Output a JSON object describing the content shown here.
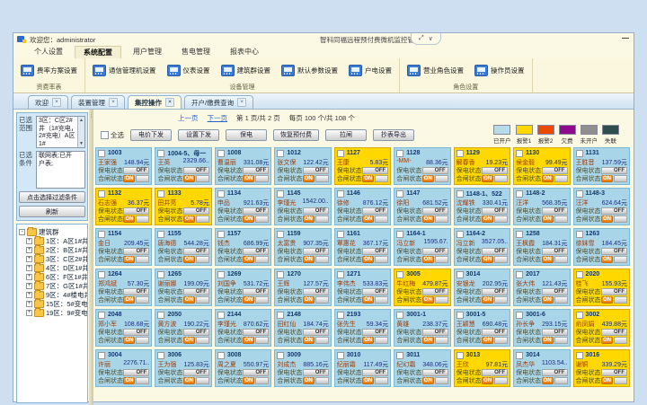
{
  "window": {
    "welcome": "欢迎您：administrator",
    "title": "智科同福远程预付费微机监控管理系统"
  },
  "icons": {
    "ribbon_toggle_expand": "⤢",
    "ribbon_toggle_chevron": "∨",
    "minimize": "—",
    "tab_close": "×",
    "scroll_up": "▲",
    "scroll_down": "▼",
    "tree_collapse": "-",
    "tree_expand": "+",
    "splitter_dots": "⁞"
  },
  "menu": {
    "items": [
      {
        "label": "个人设置",
        "active": false
      },
      {
        "label": "系统配置",
        "active": true
      },
      {
        "label": "用户管理",
        "active": false
      },
      {
        "label": "售电管理",
        "active": false
      },
      {
        "label": "报表中心",
        "active": false
      }
    ]
  },
  "ribbon": {
    "groups": [
      {
        "label": "资费率表",
        "buttons": [
          "费率方案设置"
        ]
      },
      {
        "label": "设备管理",
        "buttons": [
          "通信管理机设置",
          "仪表设置",
          "建筑群设置",
          "默认参数设置",
          "户电设置"
        ]
      },
      {
        "label": "角色设置",
        "buttons": [
          "营业角色设置",
          "操作员设置"
        ]
      }
    ]
  },
  "tabs": [
    {
      "label": "欢迎",
      "active": false
    },
    {
      "label": "装置管理",
      "active": false
    },
    {
      "label": "集控操作",
      "active": true
    },
    {
      "label": "开户/缴费查询",
      "active": false
    }
  ],
  "sidebar": {
    "range_label": "已选范围",
    "range_text": "3区：C区2#井（1#充电，2#充电）A区1#",
    "condition_label": "已选条件",
    "condition_text": "联网表;已开户表;",
    "filter_button": "点击选择过滤条件",
    "refresh_button": "刷新",
    "tree_root": "建筑群",
    "tree_items": [
      "1区：A区1#井",
      "2区：B区1#井(B区",
      "3区：C区2#井（1#",
      "4区：D区1#井（D区",
      "6区：F区1#井（F区",
      "7区：G区1#井",
      "9区：4#楼电井（4#",
      "15区：5#变电（3#",
      "19区：9#变电站（2"
    ]
  },
  "pager": {
    "prev": "上一页",
    "next": "下一页",
    "page_info": "第 1 页/共 2 页",
    "per_info": "每页 100 个/共 108 个"
  },
  "toolbar": {
    "select_all": "全选",
    "buttons": [
      "电价下发",
      "设置下发",
      "保电",
      "恢复预付费",
      "拉闸",
      "抄表导出"
    ]
  },
  "legend": [
    {
      "label": "已开户",
      "color": "#b6dcec"
    },
    {
      "label": "报警1",
      "color": "#ffd800"
    },
    {
      "label": "报警2",
      "color": "#ea4b00"
    },
    {
      "label": "欠费",
      "color": "#90098e"
    },
    {
      "label": "未开户",
      "color": "#8f8f8f"
    },
    {
      "label": "失联",
      "color": "#2e4d4d"
    }
  ],
  "card_labels": {
    "supply": "保电状态",
    "switch": "合闸状态",
    "off": "OFF",
    "on": "ON"
  },
  "cards": [
    {
      "id": "1003",
      "name": "王家强",
      "bal": "148.94元",
      "st": "open"
    },
    {
      "id": "1004-5、母一",
      "name": "王英",
      "bal": "2329.66..",
      "st": "open"
    },
    {
      "id": "1008",
      "name": "曹温丽",
      "bal": "331.08元",
      "st": "open"
    },
    {
      "id": "1012",
      "name": "张文保",
      "bal": "122.42元",
      "st": "open"
    },
    {
      "id": "1127",
      "name": "王康",
      "bal": "5.83元",
      "st": "warn"
    },
    {
      "id": "1128",
      "name": "-MM-",
      "bal": "88.36元",
      "st": "open"
    },
    {
      "id": "1129",
      "name": "解春香",
      "bal": "19.23元",
      "st": "warn"
    },
    {
      "id": "1130",
      "name": "侯金毅",
      "bal": "99.49元",
      "st": "warn"
    },
    {
      "id": "1131",
      "name": "王胜音",
      "bal": "137.59元",
      "st": "open"
    },
    {
      "id": "1132",
      "name": "石志强",
      "bal": "36.37元",
      "st": "warn"
    },
    {
      "id": "1133",
      "name": "田井亮",
      "bal": "5.78元",
      "st": "warn"
    },
    {
      "id": "1134",
      "name": "申品",
      "bal": "921.63元",
      "st": "open"
    },
    {
      "id": "1145",
      "name": "李瑾光",
      "bal": "1542.00..",
      "st": "open"
    },
    {
      "id": "1146",
      "name": "徐修",
      "bal": "876.12元",
      "st": "open"
    },
    {
      "id": "1147",
      "name": "徐阳",
      "bal": "681.52元",
      "st": "open"
    },
    {
      "id": "1148-1、522",
      "name": "沈耀铁",
      "bal": "330.41元",
      "st": "open"
    },
    {
      "id": "1148-2",
      "name": "汪洋",
      "bal": "568.35元",
      "st": "open"
    },
    {
      "id": "1148-3",
      "name": "汪洋",
      "bal": "624.64元",
      "st": "open"
    },
    {
      "id": "1154",
      "name": "金日",
      "bal": "209.45元",
      "st": "open"
    },
    {
      "id": "1155",
      "name": "唐海德",
      "bal": "544.28元",
      "st": "open"
    },
    {
      "id": "1157",
      "name": "钱杰",
      "bal": "686.99元",
      "st": "open"
    },
    {
      "id": "1159",
      "name": "太富贵",
      "bal": "907.35元",
      "st": "open"
    },
    {
      "id": "1161",
      "name": "覃惠花",
      "bal": "367.17元",
      "st": "open"
    },
    {
      "id": "1164-1",
      "name": "冯立新",
      "bal": "1595.67.",
      "st": "open"
    },
    {
      "id": "1164-2",
      "name": "冯立新",
      "bal": "3527.05..",
      "st": "open"
    },
    {
      "id": "1258",
      "name": "王枫霞",
      "bal": "184.31元",
      "st": "open"
    },
    {
      "id": "1263",
      "name": "徐妹雪",
      "bal": "184.45元",
      "st": "open"
    },
    {
      "id": "1264",
      "name": "郑鸿斌",
      "bal": "57.30元",
      "st": "open"
    },
    {
      "id": "1265",
      "name": "谢丽娜",
      "bal": "199.09元",
      "st": "open"
    },
    {
      "id": "1269",
      "name": "刘国争",
      "bal": "531.72元",
      "st": "open"
    },
    {
      "id": "1270",
      "name": "王辉",
      "bal": "127.57元",
      "st": "open"
    },
    {
      "id": "1271",
      "name": "李伟杰",
      "bal": "533.83元",
      "st": "open"
    },
    {
      "id": "3005",
      "name": "牛红梅",
      "bal": "479.87元",
      "st": "warn"
    },
    {
      "id": "3014",
      "name": "安银龙",
      "bal": "202.95元",
      "st": "open"
    },
    {
      "id": "2017",
      "name": "张大伟",
      "bal": "121.43元",
      "st": "open"
    },
    {
      "id": "2020",
      "name": "桂飞",
      "bal": "155.93元",
      "st": "warn"
    },
    {
      "id": "2048",
      "name": "郑小军",
      "bal": "108.68元",
      "st": "open"
    },
    {
      "id": "2050",
      "name": "黄方波",
      "bal": "190.22元",
      "st": "open"
    },
    {
      "id": "2144",
      "name": "李瑾光",
      "bal": "870.62元",
      "st": "open"
    },
    {
      "id": "2148",
      "name": "田红仙",
      "bal": "184.74元",
      "st": "open"
    },
    {
      "id": "2193",
      "name": "张先生",
      "bal": "59.34元",
      "st": "open"
    },
    {
      "id": "3001-1",
      "name": "黄雄",
      "bal": "238.37元",
      "st": "open"
    },
    {
      "id": "3001-5",
      "name": "王颖慧",
      "bal": "690.48元",
      "st": "open"
    },
    {
      "id": "3001-6",
      "name": "孙长争",
      "bal": "293.15元",
      "st": "open"
    },
    {
      "id": "3002",
      "name": "俞凤娟",
      "bal": "439.88元",
      "st": "warn"
    },
    {
      "id": "3004",
      "name": "许丽",
      "bal": "2276.71..",
      "st": "open"
    },
    {
      "id": "3006",
      "name": "王为强",
      "bal": "125.83元",
      "st": "open"
    },
    {
      "id": "3008",
      "name": "周之夏",
      "bal": "550.97元",
      "st": "open"
    },
    {
      "id": "3009",
      "name": "刘成杰",
      "bal": "885.16元",
      "st": "open"
    },
    {
      "id": "3010",
      "name": "纪丽霜",
      "bal": "117.49元",
      "st": "open"
    },
    {
      "id": "3011",
      "name": "纪幻霜",
      "bal": "348.06元",
      "st": "open"
    },
    {
      "id": "3013",
      "name": "王欣",
      "bal": "97.81元",
      "st": "warn"
    },
    {
      "id": "3014",
      "name": "凤杰华",
      "bal": "1103.54..",
      "st": "open"
    },
    {
      "id": "3016",
      "name": "谢铜",
      "bal": "339.29元",
      "st": "warn"
    }
  ]
}
